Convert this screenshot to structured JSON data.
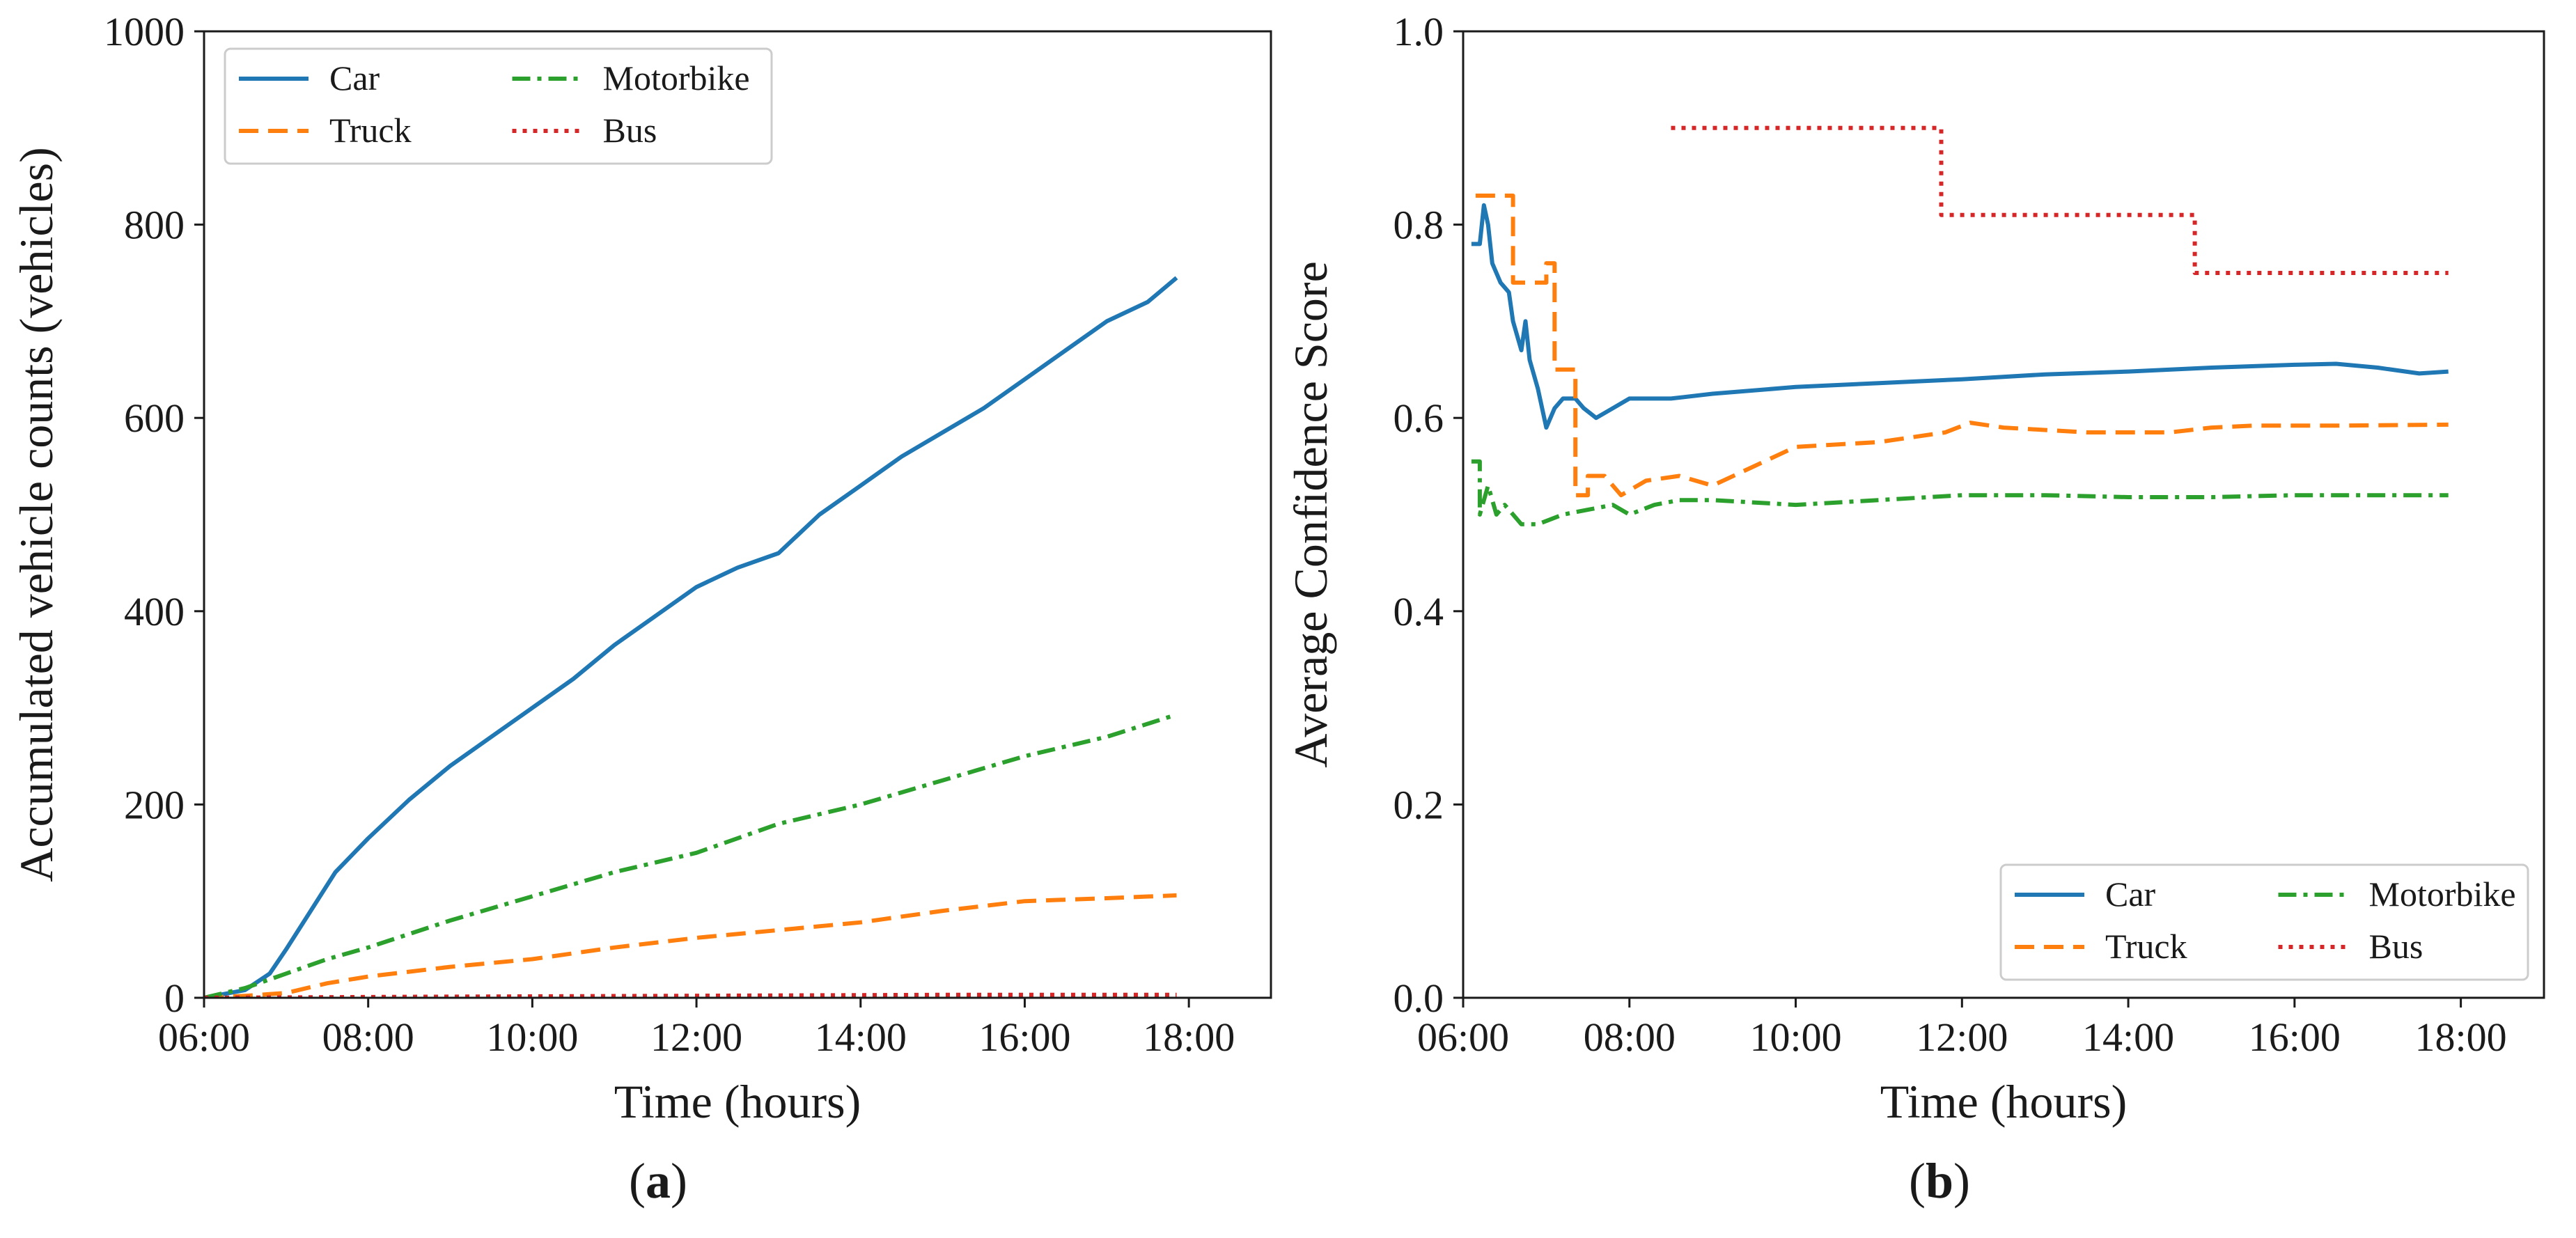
{
  "chart_data": [
    {
      "type": "line",
      "panel_label": "(a)",
      "panel_letter": "a",
      "xlabel": "Time (hours)",
      "ylabel": "Accumulated vehicle counts (vehicles)",
      "xlim": [
        6.0,
        19.0
      ],
      "ylim": [
        0,
        1000
      ],
      "xticks": [
        6,
        8,
        10,
        12,
        14,
        16,
        18
      ],
      "xtick_labels": [
        "06:00",
        "08:00",
        "10:00",
        "12:00",
        "14:00",
        "16:00",
        "18:00"
      ],
      "yticks": [
        0,
        200,
        400,
        600,
        800,
        1000
      ],
      "ytick_labels": [
        "0",
        "200",
        "400",
        "600",
        "800",
        "1000"
      ],
      "legend": {
        "location": "upper-left",
        "columns": 2
      },
      "series": [
        {
          "name": "Car",
          "color": "#1f77b4",
          "style": "solid",
          "x": [
            6.0,
            6.5,
            6.8,
            7.0,
            7.3,
            7.6,
            8.0,
            8.5,
            9.0,
            9.5,
            10.0,
            10.5,
            11.0,
            11.5,
            12.0,
            12.5,
            13.0,
            13.5,
            14.0,
            14.5,
            15.0,
            15.5,
            16.0,
            16.5,
            17.0,
            17.5,
            17.85
          ],
          "y": [
            0,
            8,
            25,
            50,
            90,
            130,
            165,
            205,
            240,
            270,
            300,
            330,
            365,
            395,
            425,
            445,
            460,
            500,
            530,
            560,
            585,
            610,
            640,
            670,
            700,
            720,
            745
          ]
        },
        {
          "name": "Truck",
          "color": "#ff7f0e",
          "style": "dashed",
          "x": [
            6.0,
            6.5,
            7.0,
            7.5,
            8.0,
            9.0,
            10.0,
            11.0,
            12.0,
            13.0,
            14.0,
            15.0,
            16.0,
            17.0,
            17.85
          ],
          "y": [
            0,
            2,
            5,
            15,
            22,
            32,
            40,
            52,
            62,
            70,
            78,
            90,
            100,
            103,
            106
          ]
        },
        {
          "name": "Motorbike",
          "color": "#2ca02c",
          "style": "dashdot",
          "x": [
            6.0,
            6.5,
            7.0,
            7.5,
            8.0,
            9.0,
            10.0,
            11.0,
            12.0,
            13.0,
            14.0,
            15.0,
            16.0,
            17.0,
            17.85
          ],
          "y": [
            0,
            10,
            25,
            40,
            52,
            80,
            105,
            130,
            150,
            180,
            200,
            225,
            250,
            270,
            293
          ]
        },
        {
          "name": "Bus",
          "color": "#d62728",
          "style": "dotted",
          "x": [
            6.0,
            8.5,
            11.8,
            14.9,
            17.85
          ],
          "y": [
            0,
            1,
            2,
            3,
            3
          ]
        }
      ]
    },
    {
      "type": "line",
      "panel_label": "(b)",
      "panel_letter": "b",
      "xlabel": "Time (hours)",
      "ylabel": "Average Confidence Score",
      "xlim": [
        6.0,
        19.0
      ],
      "ylim": [
        0.0,
        1.0
      ],
      "xticks": [
        6,
        8,
        10,
        12,
        14,
        16,
        18
      ],
      "xtick_labels": [
        "06:00",
        "08:00",
        "10:00",
        "12:00",
        "14:00",
        "16:00",
        "18:00"
      ],
      "yticks": [
        0.0,
        0.2,
        0.4,
        0.6,
        0.8,
        1.0
      ],
      "ytick_labels": [
        "0.0",
        "0.2",
        "0.4",
        "0.6",
        "0.8",
        "1.0"
      ],
      "legend": {
        "location": "lower-right",
        "columns": 2
      },
      "series": [
        {
          "name": "Car",
          "color": "#1f77b4",
          "style": "solid",
          "x": [
            6.1,
            6.2,
            6.25,
            6.3,
            6.35,
            6.45,
            6.55,
            6.6,
            6.7,
            6.75,
            6.8,
            6.9,
            7.0,
            7.1,
            7.2,
            7.35,
            7.45,
            7.6,
            7.8,
            8.0,
            8.5,
            9.0,
            10.0,
            11.0,
            12.0,
            13.0,
            14.0,
            15.0,
            16.0,
            16.5,
            17.0,
            17.5,
            17.85
          ],
          "y": [
            0.78,
            0.78,
            0.82,
            0.8,
            0.76,
            0.74,
            0.73,
            0.7,
            0.67,
            0.7,
            0.66,
            0.63,
            0.59,
            0.61,
            0.62,
            0.62,
            0.61,
            0.6,
            0.61,
            0.62,
            0.62,
            0.625,
            0.632,
            0.636,
            0.64,
            0.645,
            0.648,
            0.652,
            0.655,
            0.656,
            0.652,
            0.646,
            0.648
          ]
        },
        {
          "name": "Truck",
          "color": "#ff7f0e",
          "style": "dashed",
          "x": [
            6.15,
            6.6,
            6.6,
            7.0,
            7.0,
            7.1,
            7.1,
            7.35,
            7.35,
            7.5,
            7.5,
            7.7,
            7.9,
            8.2,
            8.6,
            9.0,
            9.5,
            10.0,
            11.0,
            11.8,
            12.1,
            12.5,
            13.5,
            14.5,
            15.0,
            15.5,
            16.5,
            17.85
          ],
          "y": [
            0.83,
            0.83,
            0.74,
            0.74,
            0.76,
            0.76,
            0.65,
            0.65,
            0.52,
            0.52,
            0.54,
            0.54,
            0.52,
            0.535,
            0.54,
            0.53,
            0.55,
            0.57,
            0.575,
            0.585,
            0.595,
            0.59,
            0.585,
            0.585,
            0.59,
            0.592,
            0.592,
            0.593
          ]
        },
        {
          "name": "Motorbike",
          "color": "#2ca02c",
          "style": "dashdot",
          "x": [
            6.1,
            6.2,
            6.2,
            6.3,
            6.4,
            6.5,
            6.7,
            6.9,
            7.2,
            7.5,
            7.8,
            8.0,
            8.3,
            8.6,
            9.0,
            10.0,
            11.0,
            12.0,
            13.0,
            14.0,
            15.0,
            16.0,
            17.0,
            17.85
          ],
          "y": [
            0.555,
            0.555,
            0.5,
            0.53,
            0.5,
            0.51,
            0.49,
            0.49,
            0.5,
            0.505,
            0.51,
            0.5,
            0.51,
            0.515,
            0.515,
            0.51,
            0.515,
            0.52,
            0.52,
            0.518,
            0.518,
            0.52,
            0.52,
            0.52
          ]
        },
        {
          "name": "Bus",
          "color": "#d62728",
          "style": "dotted",
          "x": [
            8.5,
            11.75,
            11.75,
            14.8,
            14.8,
            17.85
          ],
          "y": [
            0.9,
            0.9,
            0.81,
            0.81,
            0.75,
            0.75
          ]
        }
      ]
    }
  ]
}
